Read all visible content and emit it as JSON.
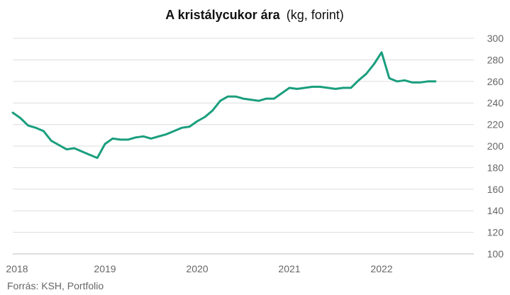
{
  "chart_data": {
    "type": "line",
    "title": "A kristálycukor ára",
    "subtitle": "(kg, forint)",
    "source": "Forrás: KSH, Portfolio",
    "ylim": [
      100,
      300
    ],
    "y_ticks": [
      100,
      120,
      140,
      160,
      180,
      200,
      220,
      240,
      260,
      280,
      300
    ],
    "x_range": [
      "2018-01",
      "2023-01"
    ],
    "x_ticks": [
      "2018",
      "2019",
      "2020",
      "2021",
      "2022"
    ],
    "grid": true,
    "y_axis_side": "right",
    "line_color": "#1a9e7e",
    "series": [
      {
        "x": [
          "2018-01",
          "2018-02",
          "2018-03",
          "2018-04",
          "2018-05",
          "2018-06",
          "2018-07",
          "2018-08",
          "2018-09",
          "2018-10",
          "2018-11",
          "2018-12",
          "2019-01",
          "2019-02",
          "2019-03",
          "2019-04",
          "2019-05",
          "2019-06",
          "2019-07",
          "2019-08",
          "2019-09",
          "2019-10",
          "2019-11",
          "2019-12",
          "2020-01",
          "2020-02",
          "2020-03",
          "2020-04",
          "2020-05",
          "2020-06",
          "2020-07",
          "2020-08",
          "2020-09",
          "2020-10",
          "2020-11",
          "2020-12",
          "2021-01",
          "2021-02",
          "2021-03",
          "2021-04",
          "2021-05",
          "2021-06",
          "2021-07",
          "2021-08",
          "2021-09",
          "2021-10",
          "2021-11",
          "2021-12",
          "2022-01",
          "2022-02",
          "2022-03",
          "2022-04",
          "2022-05",
          "2022-06",
          "2022-07",
          "2022-08"
        ],
        "values": [
          231,
          226,
          219,
          217,
          214,
          205,
          201,
          197,
          198,
          195,
          192,
          189,
          202,
          207,
          206,
          206,
          208,
          209,
          207,
          209,
          211,
          214,
          217,
          218,
          223,
          227,
          233,
          242,
          246,
          246,
          244,
          243,
          242,
          244,
          244,
          249,
          254,
          253,
          254,
          255,
          255,
          254,
          253,
          254,
          254,
          261,
          267,
          276,
          287,
          263,
          260,
          261,
          259,
          259,
          260,
          260
        ]
      }
    ]
  }
}
